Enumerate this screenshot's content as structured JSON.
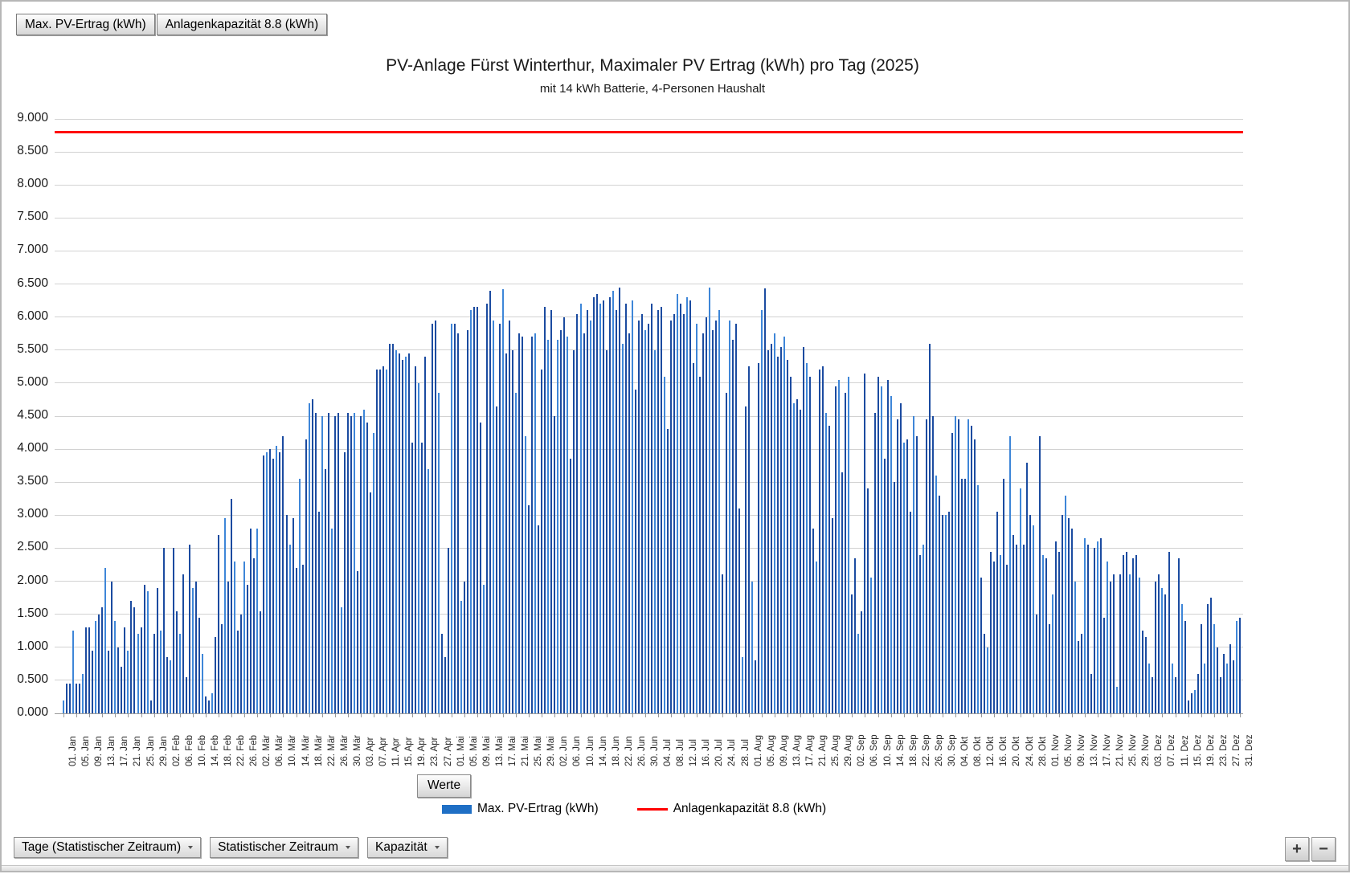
{
  "window": {
    "top_tabs": [
      {
        "label": "Max. PV-Ertrag (kWh)"
      },
      {
        "label": "Anlagenkapazität 8.8 (kWh)"
      }
    ],
    "werte_button_label": "Werte",
    "bottom_buttons": [
      {
        "label": "Tage (Statistischer Zeitraum)"
      },
      {
        "label": "Statistischer Zeitraum"
      },
      {
        "label": "Kapazität"
      }
    ],
    "zoom_in_label": "+",
    "zoom_out_label": "−"
  },
  "chart_data": {
    "type": "bar",
    "title": "PV-Anlage Fürst Winterthur, Maximaler PV Ertrag (kWh) pro Tag (2025)",
    "subtitle": "mit 14 kWh Batterie, 4-Personen Haushalt",
    "legend": [
      {
        "label": "Max. PV-Ertrag (kWh)",
        "type": "bar",
        "color": "#1f6fc5"
      },
      {
        "label": "Anlagenkapazität 8.8 (kWh)",
        "type": "line",
        "color": "#ff0000"
      }
    ],
    "reference_line": {
      "name": "Anlagenkapazität 8.8 (kWh)",
      "value": 8.8,
      "color": "#ff0000"
    },
    "y_axis": {
      "min": 0,
      "max": 9,
      "step": 0.5,
      "tick_labels": [
        "0.000",
        "0.500",
        "1.000",
        "1.500",
        "2.000",
        "2.500",
        "3.000",
        "3.500",
        "4.000",
        "4.500",
        "5.000",
        "5.500",
        "6.000",
        "6.500",
        "7.000",
        "7.500",
        "8.000",
        "8.500",
        "9.000"
      ]
    },
    "x_axis": {
      "unit": "Tag",
      "year": 2025,
      "label_every_days": 4,
      "months": [
        {
          "name": "Jan",
          "days": 31
        },
        {
          "name": "Feb",
          "days": 28
        },
        {
          "name": "Mär",
          "days": 31
        },
        {
          "name": "Apr",
          "days": 30
        },
        {
          "name": "Mai",
          "days": 31
        },
        {
          "name": "Jun",
          "days": 30
        },
        {
          "name": "Jul",
          "days": 31
        },
        {
          "name": "Aug",
          "days": 31
        },
        {
          "name": "Sep",
          "days": 30
        },
        {
          "name": "Okt",
          "days": 31
        },
        {
          "name": "Nov",
          "days": 30
        },
        {
          "name": "Dez",
          "days": 31
        }
      ]
    },
    "series": [
      {
        "name": "Max. PV-Ertrag (kWh)",
        "bar_color_dark": "#1b4ba0",
        "bar_color_light": "#3e86d8",
        "values": [
          0.2,
          0.45,
          0.45,
          1.25,
          0.45,
          0.45,
          0.6,
          1.3,
          1.3,
          0.95,
          1.4,
          1.5,
          1.6,
          2.2,
          0.95,
          2.0,
          1.4,
          1.0,
          0.7,
          1.3,
          0.95,
          1.7,
          1.6,
          1.2,
          1.3,
          1.95,
          1.85,
          0.2,
          1.2,
          1.9,
          1.25,
          2.5,
          0.85,
          0.8,
          2.5,
          1.55,
          1.2,
          2.1,
          0.55,
          2.55,
          1.9,
          2.0,
          1.45,
          0.9,
          0.25,
          0.2,
          0.3,
          1.15,
          2.7,
          1.35,
          2.95,
          2.0,
          3.25,
          2.3,
          1.25,
          1.5,
          2.3,
          1.95,
          2.8,
          2.35,
          2.8,
          1.55,
          3.9,
          3.95,
          4.0,
          3.85,
          4.05,
          3.95,
          4.2,
          3.0,
          2.55,
          2.95,
          2.2,
          3.55,
          2.25,
          4.15,
          4.7,
          4.75,
          4.55,
          3.05,
          4.5,
          3.7,
          4.55,
          2.8,
          4.5,
          4.55,
          1.6,
          3.95,
          4.55,
          4.5,
          4.55,
          2.15,
          4.5,
          4.6,
          4.4,
          3.35,
          4.25,
          5.2,
          5.2,
          5.25,
          5.2,
          5.6,
          5.6,
          5.5,
          5.45,
          5.35,
          5.4,
          5.45,
          4.1,
          5.25,
          5.0,
          4.1,
          5.4,
          3.7,
          5.9,
          5.95,
          4.85,
          1.2,
          0.85,
          2.5,
          5.9,
          5.9,
          5.75,
          1.7,
          2.0,
          5.8,
          6.1,
          6.15,
          6.15,
          4.4,
          1.95,
          6.2,
          6.4,
          5.95,
          4.65,
          5.9,
          6.42,
          5.45,
          5.95,
          5.5,
          4.85,
          5.75,
          5.7,
          4.2,
          3.15,
          5.7,
          5.75,
          2.85,
          5.2,
          6.15,
          5.65,
          6.1,
          4.5,
          5.65,
          5.8,
          6.0,
          5.7,
          3.85,
          5.5,
          6.05,
          6.2,
          5.75,
          6.1,
          5.95,
          6.3,
          6.35,
          6.2,
          6.25,
          5.5,
          6.3,
          6.4,
          6.1,
          6.45,
          5.6,
          6.2,
          5.75,
          6.25,
          4.9,
          5.95,
          6.05,
          5.8,
          5.9,
          6.2,
          5.5,
          6.1,
          6.15,
          5.1,
          4.3,
          5.95,
          6.05,
          6.35,
          6.2,
          6.05,
          6.3,
          6.25,
          5.3,
          5.9,
          5.1,
          5.75,
          6.0,
          6.45,
          5.8,
          5.95,
          6.1,
          2.1,
          4.85,
          5.95,
          5.65,
          5.9,
          3.1,
          0.85,
          4.65,
          5.25,
          2.0,
          0.8,
          5.3,
          6.1,
          6.43,
          5.5,
          5.6,
          5.75,
          5.4,
          5.55,
          5.7,
          5.35,
          5.1,
          4.7,
          4.75,
          4.6,
          5.55,
          5.3,
          5.1,
          2.8,
          2.3,
          5.2,
          5.25,
          4.55,
          4.35,
          2.95,
          4.95,
          5.05,
          3.65,
          4.85,
          5.1,
          1.8,
          2.35,
          1.2,
          1.55,
          5.15,
          3.4,
          2.05,
          4.55,
          5.1,
          4.95,
          3.85,
          5.05,
          4.8,
          3.5,
          4.45,
          4.7,
          4.1,
          4.15,
          3.05,
          4.5,
          4.2,
          2.4,
          2.55,
          4.45,
          5.6,
          4.5,
          3.6,
          3.3,
          3.0,
          3.0,
          3.05,
          4.25,
          4.5,
          4.45,
          3.55,
          3.55,
          4.45,
          4.35,
          4.15,
          3.45,
          2.05,
          1.2,
          1.0,
          2.45,
          2.3,
          3.05,
          2.4,
          3.55,
          2.25,
          4.2,
          2.7,
          2.55,
          3.4,
          2.55,
          3.8,
          3.0,
          2.85,
          1.5,
          4.2,
          2.4,
          2.35,
          1.35,
          1.8,
          2.6,
          2.45,
          3.0,
          3.3,
          2.95,
          2.8,
          2.0,
          1.1,
          1.2,
          2.65,
          2.55,
          0.6,
          2.5,
          2.6,
          2.65,
          1.45,
          2.3,
          2.0,
          2.1,
          0.4,
          2.1,
          2.4,
          2.45,
          2.1,
          2.35,
          2.4,
          2.05,
          1.25,
          1.15,
          0.75,
          0.55,
          2.0,
          2.1,
          1.9,
          1.8,
          2.45,
          0.75,
          0.55,
          2.35,
          1.65,
          1.4,
          0.2,
          0.3,
          0.35,
          0.6,
          1.35,
          0.75,
          1.65,
          1.75,
          1.35,
          1.0,
          0.55,
          0.9,
          0.75,
          1.05,
          0.8,
          1.4,
          1.45
        ]
      }
    ]
  }
}
